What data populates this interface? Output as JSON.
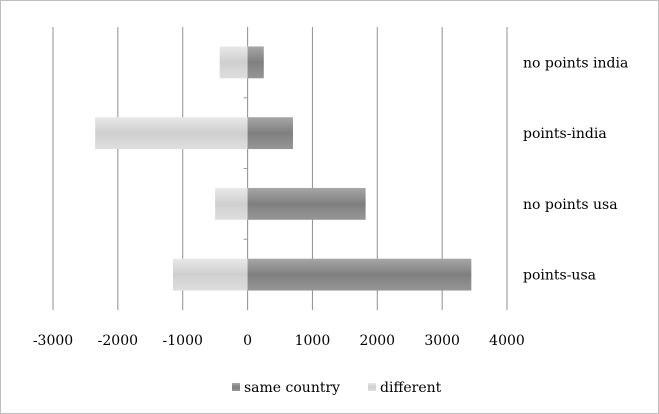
{
  "chart_data": {
    "type": "bar",
    "orientation": "horizontal",
    "stacked": true,
    "title": "",
    "xlabel": "",
    "ylabel": "",
    "xlim": [
      -3000,
      4000
    ],
    "xticks": [
      "-3000",
      "-2000",
      "-1000",
      "0",
      "1000",
      "2000",
      "3000",
      "4000"
    ],
    "categories": [
      "points-usa",
      "no points usa",
      "points-india",
      "no points india"
    ],
    "series": [
      {
        "name": "same country",
        "values": [
          3450,
          1820,
          700,
          250
        ],
        "color": "#8c8c8c"
      },
      {
        "name": "different",
        "values": [
          -1150,
          -500,
          -2350,
          -430
        ],
        "color": "#d9d9d9"
      }
    ],
    "grid": "vertical major gridlines",
    "category_labels_position": "right",
    "legend_position": "bottom"
  }
}
